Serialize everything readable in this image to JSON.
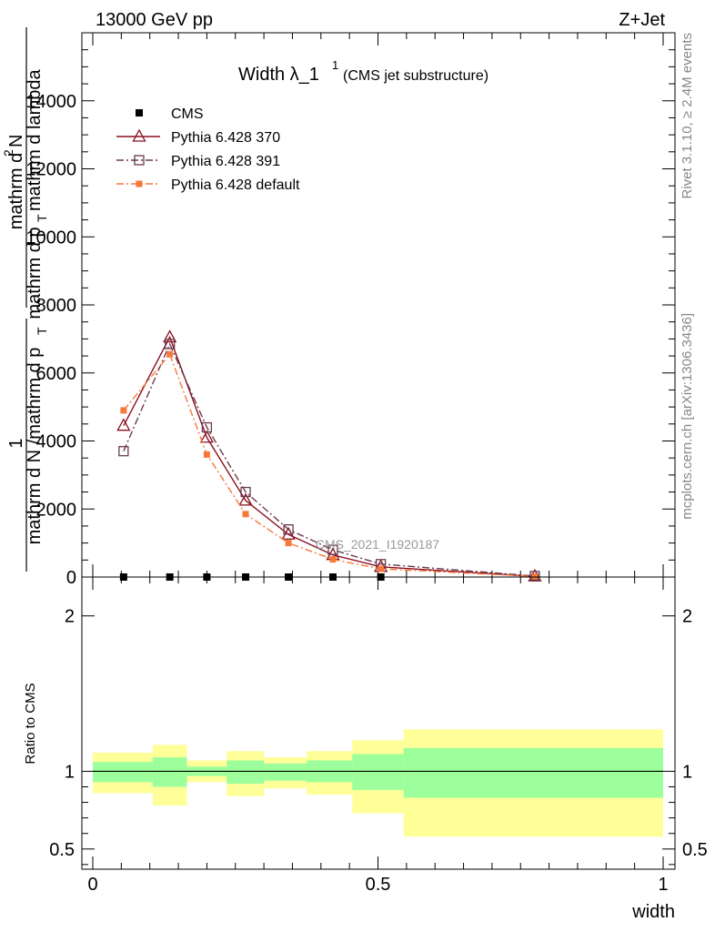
{
  "header": {
    "left": "13000 GeV pp",
    "right": "Z+Jet"
  },
  "side": {
    "rivet": "Rivet 3.1.10, ≥ 2.4M events",
    "mcplots": "mcplots.cern.ch [arXiv:1306.3436]"
  },
  "watermark": "CMS_2021_I1920187",
  "chart_data": [
    {
      "type": "line",
      "title": "Width λ_1",
      "title_superscript": "1",
      "subtitle": "(CMS jet substructure)",
      "ylabel": "1 / mathrm d N / mathrm d p_T  mathrm d^2 N / mathrm d p_T mathrm d lambda",
      "ylabel_parts": {
        "num1": "1",
        "den1": "mathrm d N /mathrm d p",
        "den1_sub": "T",
        "num2": "mathrm d",
        "num2_sup": "2",
        "num2_rest": "N",
        "den2": "mathrm d p",
        "den2_sub": "T",
        "den2_rest": "mathrm d lambda"
      },
      "xlim": [
        0,
        1
      ],
      "ylim": [
        0,
        16000
      ],
      "yticks": [
        {
          "v": 0,
          "label": "0"
        },
        {
          "v": 2000,
          "label": "2000"
        },
        {
          "v": 4000,
          "label": "4000"
        },
        {
          "v": 6000,
          "label": "6000"
        },
        {
          "v": 8000,
          "label": "8000"
        },
        {
          "v": 10000,
          "label": "10000"
        },
        {
          "v": 12000,
          "label": "12000"
        },
        {
          "v": 14000,
          "label": "14000"
        }
      ],
      "legend_position": "top-left",
      "series": [
        {
          "name": "CMS",
          "color": "#000000",
          "marker": "filled-square",
          "x": [
            0.054,
            0.135,
            0.2,
            0.268,
            0.343,
            0.421,
            0.505,
            0.775
          ],
          "y": [
            0,
            0,
            0,
            0,
            0,
            0,
            0,
            0
          ]
        },
        {
          "name": "Pythia 6.428 370",
          "color": "#8b0f1f",
          "marker": "open-triangle",
          "dash": "solid",
          "x": [
            0.054,
            0.135,
            0.2,
            0.268,
            0.343,
            0.421,
            0.505,
            0.775
          ],
          "y": [
            4450,
            7050,
            4100,
            2250,
            1250,
            650,
            300,
            20
          ]
        },
        {
          "name": "Pythia 6.428 391",
          "color": "#6b3a4e",
          "marker": "open-square",
          "dash": "dashdot",
          "x": [
            0.054,
            0.135,
            0.2,
            0.268,
            0.343,
            0.421,
            0.505,
            0.775
          ],
          "y": [
            3700,
            6850,
            4400,
            2500,
            1400,
            800,
            380,
            30
          ]
        },
        {
          "name": "Pythia 6.428 default",
          "color": "#f5793a",
          "marker": "filled-square",
          "dash": "dashdot",
          "x": [
            0.054,
            0.135,
            0.2,
            0.268,
            0.343,
            0.421,
            0.505,
            0.775
          ],
          "y": [
            4900,
            6550,
            3600,
            1850,
            1000,
            520,
            240,
            15
          ]
        }
      ]
    },
    {
      "type": "area",
      "ylabel": "Ratio to CMS",
      "xlabel": "width",
      "xlim": [
        0,
        1
      ],
      "ylim": [
        0.37,
        2.25
      ],
      "xticks": [
        {
          "v": 0,
          "label": "0"
        },
        {
          "v": 0.5,
          "label": "0.5"
        },
        {
          "v": 1,
          "label": "1"
        }
      ],
      "yticks": [
        {
          "v": 0.5,
          "label": "0.5"
        },
        {
          "v": 1,
          "label": "1"
        },
        {
          "v": 2,
          "label": "2"
        }
      ],
      "reference_line": 1,
      "bands": [
        {
          "x0": 0.0,
          "x1": 0.105,
          "stat": [
            0.93,
            1.06
          ],
          "total": [
            0.86,
            1.12
          ]
        },
        {
          "x0": 0.105,
          "x1": 0.165,
          "stat": [
            0.9,
            1.09
          ],
          "total": [
            0.78,
            1.17
          ]
        },
        {
          "x0": 0.165,
          "x1": 0.235,
          "stat": [
            0.97,
            1.03
          ],
          "total": [
            0.93,
            1.07
          ]
        },
        {
          "x0": 0.235,
          "x1": 0.3,
          "stat": [
            0.92,
            1.07
          ],
          "total": [
            0.84,
            1.13
          ]
        },
        {
          "x0": 0.3,
          "x1": 0.375,
          "stat": [
            0.94,
            1.05
          ],
          "total": [
            0.89,
            1.09
          ]
        },
        {
          "x0": 0.375,
          "x1": 0.455,
          "stat": [
            0.93,
            1.07
          ],
          "total": [
            0.85,
            1.13
          ]
        },
        {
          "x0": 0.455,
          "x1": 0.545,
          "stat": [
            0.88,
            1.11
          ],
          "total": [
            0.73,
            1.2
          ]
        },
        {
          "x0": 0.545,
          "x1": 1.0,
          "stat": [
            0.83,
            1.15
          ],
          "total": [
            0.58,
            1.27
          ]
        }
      ],
      "stat_color": "#9cff9c",
      "total_color": "#ffff99"
    }
  ]
}
